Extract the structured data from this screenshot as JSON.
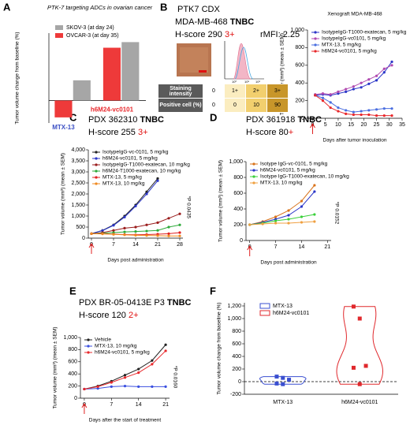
{
  "chart_data": [
    {
      "panel": "A",
      "type": "bar",
      "title": "PTK-7 targeting ADCs in ovarian cancer",
      "ylabel": "Tumor volume change from baseline (%)",
      "categories": [
        "MTX-13",
        "h6M24-vc0101"
      ],
      "category_colors": [
        "#3b4fc4",
        "#e8282c"
      ],
      "series": [
        {
          "name": "SKOV-3 (at day 24)",
          "color": "#a6a6a6",
          "values": [
            90,
            260
          ]
        },
        {
          "name": "OVCAR-3 (at day 35)",
          "color": "#ee3a3a",
          "values": [
            -75,
            235
          ]
        }
      ],
      "ylim": [
        -100,
        300
      ]
    },
    {
      "panel": "B",
      "type": "line",
      "header": "PTK7  CDX",
      "model": "MDA-MB-468",
      "subtype": "TNBC",
      "hscore": "H-score 290",
      "grade": "3+",
      "rmfi": "rMFI: 2.25",
      "histogram_ticks": [
        "10⁰",
        "10⁵",
        "10⁶"
      ],
      "table": {
        "rows": [
          [
            "Staining intensity",
            "0",
            "1+",
            "2+",
            "3+"
          ],
          [
            "Positive cell (%)",
            "0",
            "0",
            "10",
            "90"
          ]
        ]
      },
      "table_colors": [
        "#ffffff",
        "#fbedc0",
        "#f2cf6e",
        "#c8962a"
      ],
      "title": "Xenograft MDA-MB-468",
      "xlabel": "Days after tumor inoculation",
      "ylabel": "Tumor volume (mm³) (mean ± SEM)",
      "xlim": [
        -2,
        35
      ],
      "xticks": [
        0,
        5,
        10,
        15,
        20,
        25,
        30,
        35
      ],
      "ylim": [
        0,
        1000
      ],
      "yticks": [
        0,
        200,
        400,
        600,
        800,
        {
          "value": 1000,
          "label": "1,000"
        }
      ],
      "series": [
        {
          "name": "IsotypeIgG-T1000-exatecan, 5 mg/kg",
          "color": "#2b36c8",
          "x": [
            1,
            4,
            7,
            10,
            13,
            16,
            19,
            22,
            25,
            28,
            31
          ],
          "values": [
            260,
            270,
            260,
            280,
            300,
            330,
            350,
            390,
            430,
            520,
            640
          ]
        },
        {
          "name": "IsotypeIgG-vc0101, 5 mg/kg",
          "color": "#b04ab0",
          "x": [
            1,
            4,
            7,
            10,
            13,
            16,
            19,
            22,
            25,
            28,
            31
          ],
          "values": [
            270,
            280,
            270,
            300,
            330,
            360,
            400,
            440,
            480,
            560,
            600
          ]
        },
        {
          "name": "MTX-13, 5 mg/kg",
          "color": "#4a6ee0",
          "x": [
            1,
            4,
            7,
            10,
            13,
            16,
            19,
            22,
            25,
            28,
            31
          ],
          "values": [
            260,
            230,
            180,
            120,
            90,
            70,
            80,
            90,
            100,
            110,
            110
          ]
        },
        {
          "name": "h6M24-vc0101, 5 mg/kg",
          "color": "#e8282c",
          "x": [
            1,
            4,
            7,
            10,
            13,
            16,
            19,
            22,
            25,
            28,
            31
          ],
          "values": [
            260,
            200,
            120,
            80,
            50,
            40,
            40,
            40,
            30,
            30,
            30
          ]
        }
      ]
    },
    {
      "panel": "C",
      "type": "line",
      "model": "PDX 362310",
      "subtype": "TNBC",
      "hscore": "H-score 255",
      "grade": "3+",
      "annotation": "*P 0.0435",
      "xlabel": "Days post administration",
      "ylabel": "Tumor volume (mm³) (mean ± SEM)",
      "xlim": [
        -1,
        29
      ],
      "xticks": [
        0,
        7,
        14,
        21,
        28
      ],
      "ylim": [
        0,
        4000
      ],
      "yticks": [
        0,
        500,
        {
          "value": 1000,
          "label": "1,000"
        },
        {
          "value": 1500,
          "label": "1,500"
        },
        {
          "value": 2000,
          "label": "2,000"
        },
        {
          "value": 2500,
          "label": "2,500"
        },
        {
          "value": 3000,
          "label": "3,000"
        },
        {
          "value": 3500,
          "label": "3,500"
        },
        {
          "value": 4000,
          "label": "4,000"
        }
      ],
      "series": [
        {
          "name": "IsotypeIgG-vc-0101, 5 mg/kg",
          "color": "#222222",
          "x": [
            0,
            3.5,
            7,
            10.5,
            14,
            17.5,
            21
          ],
          "values": [
            200,
            350,
            600,
            1000,
            1500,
            2100,
            2700
          ]
        },
        {
          "name": "h6M24-vc0101, 5 mg/kg",
          "color": "#2b36c8",
          "x": [
            0,
            3.5,
            7,
            10.5,
            14,
            17.5,
            21
          ],
          "values": [
            200,
            340,
            580,
            950,
            1450,
            2000,
            2600
          ]
        },
        {
          "name": "IsotypeIgG-T1000-exatecan, 10 mg/kg",
          "color": "#9a1c1c",
          "x": [
            0,
            3.5,
            7,
            10.5,
            14,
            17.5,
            21,
            24.5,
            28
          ],
          "values": [
            200,
            250,
            350,
            450,
            500,
            600,
            700,
            900,
            1100
          ]
        },
        {
          "name": "h6M24-T1000-exatecan, 10 mg/kg",
          "color": "#2eaa3a",
          "x": [
            0,
            3.5,
            7,
            10.5,
            14,
            17.5,
            21,
            24.5,
            28
          ],
          "values": [
            200,
            220,
            250,
            280,
            300,
            320,
            350,
            500,
            600
          ]
        },
        {
          "name": "MTX-13, 5 mg/kg",
          "color": "#e02020",
          "x": [
            0,
            3.5,
            7,
            10.5,
            14,
            17.5,
            21,
            24.5,
            28
          ],
          "values": [
            200,
            200,
            180,
            160,
            150,
            160,
            180,
            200,
            250
          ]
        },
        {
          "name": "MTX-13, 10 mg/kg",
          "color": "#f08a20",
          "x": [
            0,
            3.5,
            7,
            10.5,
            14,
            17.5,
            21,
            24.5,
            28
          ],
          "values": [
            200,
            190,
            170,
            150,
            130,
            120,
            110,
            100,
            100
          ]
        }
      ]
    },
    {
      "panel": "D",
      "type": "line",
      "model": "PDX 361918",
      "subtype": "TNBC",
      "hscore": "H-score 80",
      "grade": "+",
      "annotation": "*P 0.0152",
      "xlabel": "Days post administration",
      "ylabel": "Tumor volume (mm³) (mean ± SEM)",
      "xlim": [
        -1,
        22
      ],
      "xticks": [
        0,
        7,
        14,
        21
      ],
      "ylim": [
        0,
        1000
      ],
      "yticks": [
        0,
        200,
        400,
        600,
        800,
        {
          "value": 1000,
          "label": "1,000"
        }
      ],
      "series": [
        {
          "name": "Isotype IgG-vc-0101, 5 mg/kg",
          "color": "#d9731a",
          "x": [
            0,
            3.5,
            7,
            10.5,
            14,
            17.5
          ],
          "values": [
            200,
            240,
            300,
            380,
            500,
            700
          ]
        },
        {
          "name": "h6M24-vc0101, 5 mg/kg",
          "color": "#2b36c8",
          "x": [
            0,
            3.5,
            7,
            10.5,
            14,
            17.5
          ],
          "values": [
            200,
            230,
            270,
            320,
            430,
            620
          ]
        },
        {
          "name": "Isotype IgG-T1000-exatecan, 10 mg/kg",
          "color": "#3ad03a",
          "x": [
            0,
            3.5,
            7,
            10.5,
            14,
            17.5
          ],
          "values": [
            200,
            220,
            250,
            270,
            300,
            330
          ]
        },
        {
          "name": "MTX-13, 10 mg/kg",
          "color": "#f0a040",
          "x": [
            0,
            3.5,
            7,
            10.5,
            14,
            17.5
          ],
          "values": [
            200,
            210,
            220,
            220,
            230,
            240
          ]
        }
      ]
    },
    {
      "panel": "E",
      "type": "line",
      "model": "PDX BR-05-0413E P3",
      "subtype": "TNBC",
      "hscore": "H-score 120",
      "grade": "2+",
      "annotation": "*P 0.0160",
      "xlabel": "Days after the start of treatment",
      "ylabel": "Tumor volume (mm³) (mean ± SEM)",
      "xlim": [
        -1,
        22
      ],
      "xticks": [
        0,
        7,
        14,
        21
      ],
      "ylim": [
        0,
        1000
      ],
      "yticks": [
        0,
        200,
        400,
        600,
        800,
        {
          "value": 1000,
          "label": "1,000"
        }
      ],
      "series": [
        {
          "name": "Vehicle",
          "color": "#222222",
          "x": [
            0,
            3.5,
            7,
            10.5,
            14,
            17.5,
            21
          ],
          "values": [
            150,
            200,
            280,
            380,
            480,
            620,
            880
          ]
        },
        {
          "name": "MTX-13, 10 mg/kg",
          "color": "#3a4fe0",
          "x": [
            0,
            3.5,
            7,
            10.5,
            14,
            17.5,
            21
          ],
          "values": [
            150,
            160,
            190,
            200,
            190,
            190,
            190
          ]
        },
        {
          "name": "h6M24-vc0101, 5 mg/kg",
          "color": "#e8282c",
          "x": [
            0,
            3.5,
            7,
            10.5,
            14,
            17.5,
            21
          ],
          "values": [
            150,
            190,
            260,
            340,
            420,
            560,
            780
          ]
        }
      ]
    },
    {
      "panel": "F",
      "type": "violin",
      "ylabel": "Tumor volume change from baseline (%)",
      "categories": [
        "MTX-13",
        "h6M24-vc0101"
      ],
      "ylim": [
        -200,
        1250
      ],
      "yticks": [
        -200,
        0,
        200,
        400,
        600,
        800,
        {
          "value": 1000,
          "label": "1,000"
        },
        {
          "value": 1200,
          "label": "1,200"
        }
      ],
      "series": [
        {
          "name": "MTX-13",
          "color": "#3a4fd0",
          "values": [
            80,
            60,
            30,
            -30,
            -40
          ]
        },
        {
          "name": "h6M24-vc0101",
          "color": "#e0282c",
          "values": [
            1190,
            1000,
            250,
            220,
            -40
          ]
        }
      ]
    }
  ]
}
